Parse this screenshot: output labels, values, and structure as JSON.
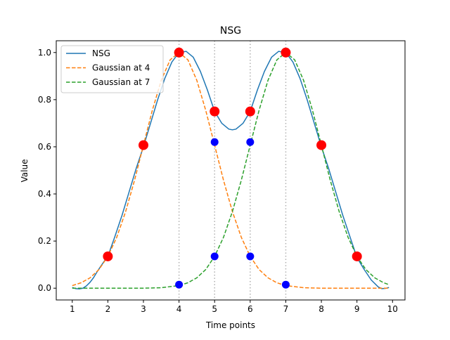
{
  "chart_data": {
    "type": "line",
    "title": "NSG",
    "xlabel": "Time points",
    "ylabel": "Value",
    "xlim": [
      0.55,
      10.35
    ],
    "ylim": [
      -0.05,
      1.05
    ],
    "x_ticks": [
      1,
      2,
      3,
      4,
      5,
      6,
      7,
      8,
      9,
      10
    ],
    "y_ticks": [
      0.0,
      0.2,
      0.4,
      0.6,
      0.8,
      1.0
    ],
    "x_tick_labels": [
      "1",
      "2",
      "3",
      "4",
      "5",
      "6",
      "7",
      "8",
      "9",
      "10"
    ],
    "y_tick_labels": [
      "0.0",
      "0.2",
      "0.4",
      "0.6",
      "0.8",
      "1.0"
    ],
    "grid": false,
    "legend_position": "top-left",
    "vertical_lines": [
      4,
      5,
      6,
      7
    ],
    "series": [
      {
        "name": "NSG",
        "style": "solid",
        "color": "#1f77b4",
        "x": [
          1.0,
          1.1,
          1.2,
          1.3,
          1.4,
          1.5,
          1.6,
          1.7,
          1.8,
          1.9,
          2.0,
          2.2,
          2.4,
          2.6,
          2.8,
          3.0,
          3.2,
          3.4,
          3.6,
          3.8,
          4.0,
          4.2,
          4.4,
          4.6,
          4.8,
          5.0,
          5.2,
          5.4,
          5.5,
          5.6,
          5.8,
          6.0,
          6.2,
          6.4,
          6.6,
          6.8,
          7.0,
          7.2,
          7.4,
          7.6,
          7.8,
          8.0,
          8.2,
          8.4,
          8.6,
          8.8,
          9.0,
          9.2,
          9.4,
          9.6,
          9.7,
          9.8,
          9.9
        ],
        "y": [
          0.003,
          -0.002,
          -0.003,
          0.0,
          0.01,
          0.025,
          0.045,
          0.07,
          0.093,
          0.115,
          0.135,
          0.22,
          0.31,
          0.41,
          0.51,
          0.6,
          0.7,
          0.8,
          0.89,
          0.96,
          1.0,
          1.005,
          0.98,
          0.92,
          0.84,
          0.75,
          0.7,
          0.675,
          0.672,
          0.675,
          0.7,
          0.75,
          0.84,
          0.92,
          0.98,
          1.005,
          1.0,
          0.96,
          0.89,
          0.8,
          0.7,
          0.6,
          0.51,
          0.41,
          0.31,
          0.22,
          0.13,
          0.08,
          0.035,
          0.005,
          -0.002,
          -0.001,
          0.003
        ]
      },
      {
        "name": "Gaussian at 4",
        "style": "dashed",
        "color": "#ff7f0e",
        "x": [
          1.0,
          1.25,
          1.5,
          1.75,
          2.0,
          2.25,
          2.5,
          2.75,
          3.0,
          3.25,
          3.5,
          3.75,
          4.0,
          4.25,
          4.5,
          4.75,
          5.0,
          5.25,
          5.5,
          5.75,
          6.0,
          6.25,
          6.5,
          6.75,
          7.0,
          7.5,
          8.0,
          8.5,
          9.0,
          9.5,
          9.9
        ],
        "y": [
          0.011,
          0.023,
          0.044,
          0.079,
          0.135,
          0.216,
          0.325,
          0.458,
          0.607,
          0.755,
          0.882,
          0.969,
          1.0,
          0.969,
          0.882,
          0.755,
          0.607,
          0.458,
          0.325,
          0.216,
          0.135,
          0.079,
          0.044,
          0.023,
          0.011,
          0.002,
          0.0,
          0.0,
          0.0,
          0.0,
          0.0
        ]
      },
      {
        "name": "Gaussian at 7",
        "style": "dashed",
        "color": "#2ca02c",
        "x": [
          1.0,
          1.5,
          2.0,
          2.5,
          3.0,
          3.5,
          4.0,
          4.25,
          4.5,
          4.75,
          5.0,
          5.25,
          5.5,
          5.75,
          6.0,
          6.25,
          6.5,
          6.75,
          7.0,
          7.25,
          7.5,
          7.75,
          8.0,
          8.25,
          8.5,
          8.75,
          9.0,
          9.25,
          9.5,
          9.75,
          9.9
        ],
        "y": [
          0.0,
          0.0,
          0.0,
          0.0,
          0.0,
          0.002,
          0.011,
          0.023,
          0.044,
          0.079,
          0.135,
          0.216,
          0.325,
          0.458,
          0.607,
          0.755,
          0.882,
          0.969,
          1.0,
          0.969,
          0.882,
          0.755,
          0.607,
          0.458,
          0.325,
          0.216,
          0.135,
          0.079,
          0.044,
          0.023,
          0.015
        ]
      }
    ],
    "red_points": {
      "color": "#ff0000",
      "x": [
        2,
        3,
        4,
        5,
        6,
        7,
        8,
        9
      ],
      "y": [
        0.135,
        0.607,
        1.0,
        0.75,
        0.75,
        1.0,
        0.607,
        0.135
      ]
    },
    "blue_points": {
      "color": "#0000ff",
      "x": [
        4,
        5,
        5,
        6,
        6,
        7
      ],
      "y": [
        0.015,
        0.62,
        0.135,
        0.62,
        0.135,
        0.015
      ]
    }
  }
}
